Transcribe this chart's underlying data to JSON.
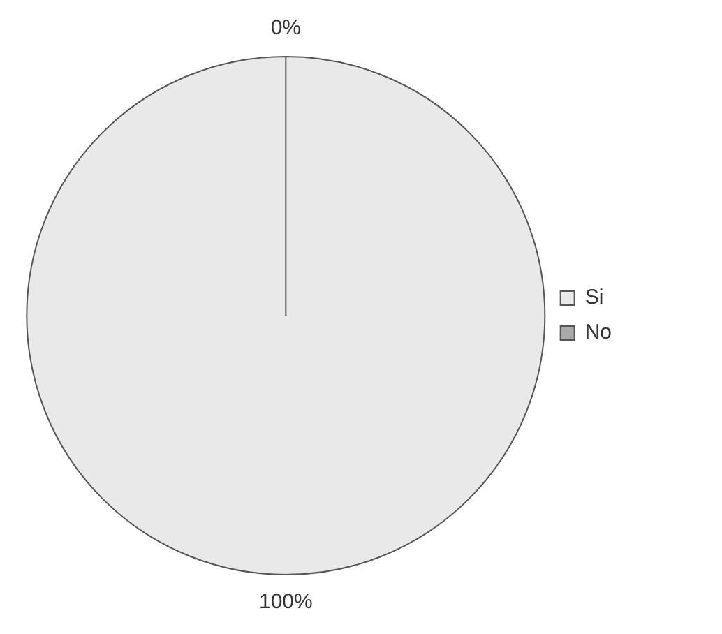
{
  "chart_data": {
    "type": "pie",
    "categories": [
      "Si",
      "No"
    ],
    "values": [
      100,
      0
    ],
    "colors": [
      "#e9e9e9",
      "#a9a9a9"
    ],
    "value_labels": [
      "100%",
      "0%"
    ],
    "legend": "right"
  }
}
